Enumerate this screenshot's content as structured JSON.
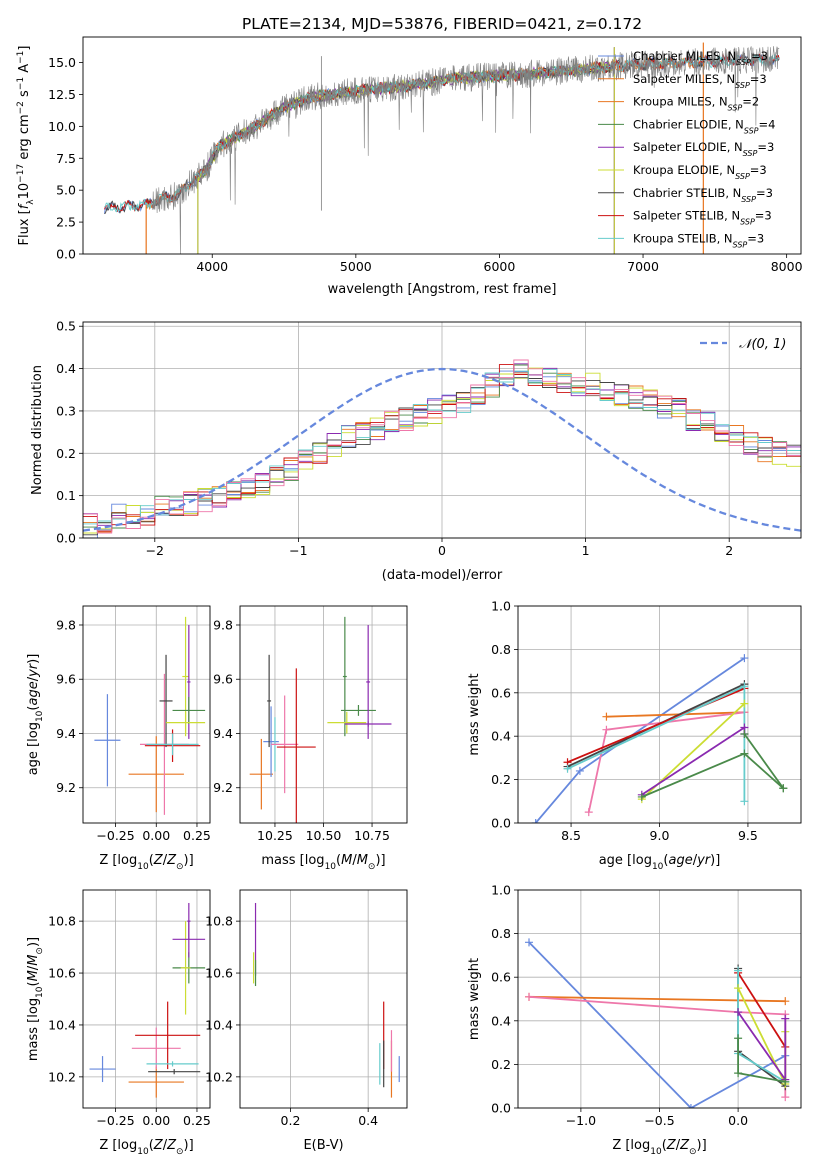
{
  "figure": {
    "title": "PLATE=2134, MJD=53876, FIBERID=0421, z=0.172"
  },
  "colors": {
    "blue": "#6688dd",
    "orange": "#e87722",
    "green": "#4a8a4a",
    "purple": "#8a2ab0",
    "yellowgreen": "#ccdd33",
    "darkgray": "#444444",
    "red": "#cc1111",
    "cyan": "#66cccc",
    "pink": "#ee77aa",
    "sky": "#3399dd",
    "data": "#808080"
  },
  "chart_data": [
    {
      "id": "spectrum",
      "type": "line",
      "title": "PLATE=2134, MJD=53876, FIBERID=0421, z=0.172",
      "xlabel": "wavelength [Angstrom, rest frame]",
      "ylabel": "Flux [f_λ 10^-17 erg cm^-2 s^-1 A^-1]",
      "xlim": [
        3100,
        8100
      ],
      "ylim": [
        0,
        17
      ],
      "xticks": [
        4000,
        5000,
        6000,
        7000,
        8000
      ],
      "yticks": [
        0.0,
        2.5,
        5.0,
        7.5,
        10.0,
        12.5,
        15.0
      ],
      "grid": false,
      "legend_position": "top-right",
      "envelope": {
        "x": [
          3250,
          3400,
          3550,
          3650,
          3750,
          3850,
          3950,
          4050,
          4150,
          4300,
          4500,
          4700,
          4900,
          5100,
          5300,
          5500,
          5700,
          5900,
          6100,
          6300,
          6500,
          6700,
          6900,
          7100,
          7300,
          7500,
          7700
        ],
        "y": [
          3.6,
          3.7,
          3.9,
          4.3,
          4.6,
          5.6,
          6.5,
          8.5,
          9.0,
          10.0,
          11.5,
          12.3,
          12.6,
          12.9,
          13.1,
          13.4,
          13.8,
          13.9,
          14.0,
          14.2,
          14.4,
          14.6,
          14.8,
          14.9,
          15.0,
          15.1,
          15.2
        ]
      },
      "series": [
        {
          "name": "Chabrier MILES, N_SSP=3",
          "color": "#6688dd",
          "xstart": 3250,
          "xend": 7950
        },
        {
          "name": "Salpeter MILES, N_SSP=3",
          "color": "#e87722",
          "xstart": 3540,
          "xend": 7420
        },
        {
          "name": "Kroupa MILES, N_SSP=2",
          "color": "#e87722",
          "xstart": 3540,
          "xend": 7420
        },
        {
          "name": "Chabrier ELODIE, N_SSP=4",
          "color": "#4a8a4a",
          "xstart": 3900,
          "xend": 6800
        },
        {
          "name": "Salpeter ELODIE, N_SSP=3",
          "color": "#8a2ab0",
          "xstart": 3900,
          "xend": 6800
        },
        {
          "name": "Kroupa ELODIE, N_SSP=3",
          "color": "#ccdd33",
          "xstart": 3900,
          "xend": 6800
        },
        {
          "name": "Chabrier STELIB, N_SSP=3",
          "color": "#444444",
          "xstart": 3250,
          "xend": 7950
        },
        {
          "name": "Salpeter STELIB, N_SSP=3",
          "color": "#cc1111",
          "xstart": 3250,
          "xend": 7950
        },
        {
          "name": "Kroupa STELIB, N_SSP=3",
          "color": "#66cccc",
          "xstart": 3250,
          "xend": 7950
        }
      ],
      "legend": [
        {
          "label": "Chabrier MILES, N",
          "sub": "SSP",
          "suffix": "=3",
          "color": "#6688dd"
        },
        {
          "label": "Salpeter MILES, N",
          "sub": "SSP",
          "suffix": "=3",
          "color": "#e87722"
        },
        {
          "label": "Kroupa MILES, N",
          "sub": "SSP",
          "suffix": "=2",
          "color": "#e87722"
        },
        {
          "label": "Chabrier ELODIE, N",
          "sub": "SSP",
          "suffix": "=4",
          "color": "#4a8a4a"
        },
        {
          "label": "Salpeter ELODIE, N",
          "sub": "SSP",
          "suffix": "=3",
          "color": "#8a2ab0"
        },
        {
          "label": "Kroupa ELODIE, N",
          "sub": "SSP",
          "suffix": "=3",
          "color": "#ccdd33"
        },
        {
          "label": "Chabrier STELIB, N",
          "sub": "SSP",
          "suffix": "=3",
          "color": "#444444"
        },
        {
          "label": "Salpeter STELIB, N",
          "sub": "SSP",
          "suffix": "=3",
          "color": "#cc1111"
        },
        {
          "label": "Kroupa STELIB, N",
          "sub": "SSP",
          "suffix": "=3",
          "color": "#66cccc"
        }
      ]
    },
    {
      "id": "residuals",
      "type": "line",
      "xlabel": "(data-model)/error",
      "ylabel": "Normed distribution",
      "xlim": [
        -2.5,
        2.5
      ],
      "ylim": [
        0,
        0.51
      ],
      "xticks": [
        -2,
        -1,
        0,
        1,
        2
      ],
      "yticks": [
        0.0,
        0.1,
        0.2,
        0.3,
        0.4,
        0.5
      ],
      "grid": true,
      "legend_position": "top-right",
      "reference": {
        "label": "N(0,1)",
        "color": "#6688dd"
      },
      "bin_width": 0.1,
      "hist_base": [
        0.03,
        0.04,
        0.05,
        0.05,
        0.06,
        0.07,
        0.07,
        0.08,
        0.09,
        0.1,
        0.11,
        0.12,
        0.13,
        0.15,
        0.16,
        0.18,
        0.2,
        0.22,
        0.24,
        0.25,
        0.26,
        0.27,
        0.28,
        0.29,
        0.3,
        0.31,
        0.32,
        0.34,
        0.36,
        0.38,
        0.4,
        0.39,
        0.38,
        0.37,
        0.36,
        0.36,
        0.35,
        0.34,
        0.33,
        0.32,
        0.31,
        0.3,
        0.28,
        0.27,
        0.25,
        0.24,
        0.22,
        0.21,
        0.2,
        0.19,
        0.18,
        0.17,
        0.16,
        0.15,
        0.14,
        0.12,
        0.11,
        0.1,
        0.09,
        0.08,
        0.07,
        0.07,
        0.06,
        0.05,
        0.04,
        0.04,
        0.03,
        0.03,
        0.03,
        0.02
      ],
      "hist_colors": [
        "#6688dd",
        "#e87722",
        "#4a8a4a",
        "#8a2ab0",
        "#ccdd33",
        "#444444",
        "#cc1111",
        "#66cccc",
        "#ee77aa"
      ]
    },
    {
      "id": "age_vs_Z",
      "type": "scatter",
      "xlabel": "Z [log10(Z/Z_sun)]",
      "ylabel": "age [log10(age/yr)]",
      "xlim": [
        -0.45,
        0.33
      ],
      "ylim": [
        9.07,
        9.87
      ],
      "xticks": [
        -0.25,
        0.0,
        0.25
      ],
      "yticks": [
        9.2,
        9.4,
        9.6,
        9.8
      ],
      "grid": true,
      "points": [
        {
          "x": -0.3,
          "y": 9.375,
          "xerr": 0.08,
          "yerr": 0.17,
          "color": "#6688dd"
        },
        {
          "x": 0.0,
          "y": 9.25,
          "xerr": 0.17,
          "yerr": 0.14,
          "color": "#e87722"
        },
        {
          "x": 0.05,
          "y": 9.36,
          "xerr": 0.15,
          "yerr": 0.26,
          "color": "#ee77aa"
        },
        {
          "x": 0.1,
          "y": 9.355,
          "xerr": 0.17,
          "yerr": 0.06,
          "color": "#cc1111"
        },
        {
          "x": 0.06,
          "y": 9.52,
          "xerr": 0.04,
          "yerr": 0.17,
          "color": "#444444"
        },
        {
          "x": 0.1,
          "y": 9.36,
          "xerr": 0.16,
          "yerr": 0.04,
          "color": "#66cccc"
        },
        {
          "x": 0.18,
          "y": 9.61,
          "xerr": 0.02,
          "yerr": 0.22,
          "color": "#ccdd33"
        },
        {
          "x": 0.2,
          "y": 9.59,
          "xerr": 0.01,
          "yerr": 0.21,
          "color": "#8a2ab0"
        },
        {
          "x": 0.2,
          "y": 9.485,
          "xerr": 0.1,
          "yerr": 0.05,
          "color": "#4a8a4a"
        },
        {
          "x": 0.18,
          "y": 9.44,
          "xerr": 0.12,
          "yerr": 0.04,
          "color": "#ccdd33"
        }
      ]
    },
    {
      "id": "age_vs_mass",
      "type": "scatter",
      "xlabel": "mass [log10(M/M_sun)]",
      "ylabel": "",
      "xlim": [
        10.07,
        10.93
      ],
      "ylim": [
        9.07,
        9.87
      ],
      "xticks": [
        10.25,
        10.5,
        10.75
      ],
      "yticks": [
        9.2,
        9.4,
        9.6,
        9.8
      ],
      "grid": true,
      "points": [
        {
          "x": 10.18,
          "y": 9.25,
          "xerr": 0.06,
          "yerr": 0.13,
          "color": "#e87722"
        },
        {
          "x": 10.23,
          "y": 9.37,
          "xerr": 0.04,
          "yerr": 0.13,
          "color": "#6688dd"
        },
        {
          "x": 10.25,
          "y": 9.36,
          "xerr": 0.02,
          "yerr": 0.1,
          "color": "#66cccc"
        },
        {
          "x": 10.22,
          "y": 9.52,
          "xerr": 0.01,
          "yerr": 0.17,
          "color": "#444444"
        },
        {
          "x": 10.3,
          "y": 9.36,
          "xerr": 0.07,
          "yerr": 0.18,
          "color": "#ee77aa"
        },
        {
          "x": 10.36,
          "y": 9.35,
          "xerr": 0.1,
          "yerr": 0.29,
          "color": "#cc1111"
        },
        {
          "x": 10.61,
          "y": 9.61,
          "xerr": 0.01,
          "yerr": 0.22,
          "color": "#4a8a4a"
        },
        {
          "x": 10.62,
          "y": 9.44,
          "xerr": 0.1,
          "yerr": 0.04,
          "color": "#ccdd33"
        },
        {
          "x": 10.68,
          "y": 9.485,
          "xerr": 0.09,
          "yerr": 0.02,
          "color": "#4a8a4a"
        },
        {
          "x": 10.73,
          "y": 9.59,
          "xerr": 0.01,
          "yerr": 0.21,
          "color": "#8a2ab0"
        },
        {
          "x": 10.73,
          "y": 9.435,
          "xerr": 0.12,
          "yerr": 0.01,
          "color": "#8a2ab0"
        }
      ]
    },
    {
      "id": "weight_vs_age",
      "type": "line",
      "xlabel": "age [log10(age/yr)]",
      "ylabel": "mass weight",
      "xlim": [
        8.2,
        9.8
      ],
      "ylim": [
        0,
        1
      ],
      "xticks": [
        8.5,
        9.0,
        9.5
      ],
      "yticks": [
        0.0,
        0.2,
        0.4,
        0.6,
        0.8,
        1.0
      ],
      "grid": true,
      "series": [
        {
          "color": "#6688dd",
          "x": [
            8.3,
            8.55,
            9.48
          ],
          "y": [
            0.0,
            0.24,
            0.76
          ]
        },
        {
          "color": "#e87722",
          "x": [
            8.7,
            9.48
          ],
          "y": [
            0.49,
            0.51
          ]
        },
        {
          "color": "#ee77aa",
          "x": [
            8.6,
            8.7,
            9.48
          ],
          "y": [
            0.05,
            0.43,
            0.51
          ]
        },
        {
          "color": "#444444",
          "x": [
            8.48,
            9.48
          ],
          "y": [
            0.26,
            0.64
          ]
        },
        {
          "color": "#cc1111",
          "x": [
            8.48,
            9.48
          ],
          "y": [
            0.28,
            0.62
          ]
        },
        {
          "color": "#66cccc",
          "x": [
            8.48,
            9.48,
            9.48
          ],
          "y": [
            0.25,
            0.63,
            0.1
          ]
        },
        {
          "color": "#ccdd33",
          "x": [
            8.9,
            9.48
          ],
          "y": [
            0.11,
            0.55
          ]
        },
        {
          "color": "#8a2ab0",
          "x": [
            8.9,
            9.48,
            9.48
          ],
          "y": [
            0.13,
            0.44,
            0.41
          ]
        },
        {
          "color": "#4a8a4a",
          "x": [
            8.9,
            9.48,
            9.7
          ],
          "y": [
            0.12,
            0.32,
            0.16
          ]
        },
        {
          "color": "#4a8a4a",
          "x": [
            9.48,
            9.7
          ],
          "y": [
            0.41,
            0.16
          ]
        }
      ]
    },
    {
      "id": "mass_vs_Z",
      "type": "scatter",
      "xlabel": "Z [log10(Z/Z_sun)]",
      "ylabel": "mass [log10(M/M_sun)]",
      "xlim": [
        -0.45,
        0.33
      ],
      "ylim": [
        10.08,
        10.92
      ],
      "xticks": [
        -0.25,
        0.0,
        0.25
      ],
      "yticks": [
        10.2,
        10.4,
        10.6,
        10.8
      ],
      "grid": true,
      "points": [
        {
          "x": -0.33,
          "y": 10.23,
          "xerr": 0.08,
          "yerr": 0.05,
          "color": "#6688dd"
        },
        {
          "x": 0.0,
          "y": 10.18,
          "xerr": 0.17,
          "yerr": 0.06,
          "color": "#e87722"
        },
        {
          "x": 0.0,
          "y": 10.31,
          "xerr": 0.15,
          "yerr": 0.08,
          "color": "#ee77aa"
        },
        {
          "x": 0.07,
          "y": 10.36,
          "xerr": 0.2,
          "yerr": 0.13,
          "color": "#cc1111"
        },
        {
          "x": 0.11,
          "y": 10.22,
          "xerr": 0.16,
          "yerr": 0.01,
          "color": "#444444"
        },
        {
          "x": 0.1,
          "y": 10.25,
          "xerr": 0.16,
          "yerr": 0.01,
          "color": "#66cccc"
        },
        {
          "x": 0.2,
          "y": 10.62,
          "xerr": 0.1,
          "yerr": 0.06,
          "color": "#4a8a4a"
        },
        {
          "x": 0.18,
          "y": 10.62,
          "xerr": 0.03,
          "yerr": 0.18,
          "color": "#ccdd33"
        },
        {
          "x": 0.2,
          "y": 10.73,
          "xerr": 0.1,
          "yerr": 0.07,
          "color": "#8a2ab0"
        },
        {
          "x": 0.2,
          "y": 10.8,
          "xerr": 0.01,
          "yerr": 0.07,
          "color": "#8a2ab0"
        }
      ]
    },
    {
      "id": "mass_vs_EBV",
      "type": "scatter",
      "xlabel": "E(B-V)",
      "ylabel": "",
      "xlim": [
        0.07,
        0.5
      ],
      "ylim": [
        10.08,
        10.92
      ],
      "xticks": [
        0.2,
        0.4
      ],
      "yticks": [
        10.2,
        10.4,
        10.6,
        10.8
      ],
      "grid": true,
      "points": [
        {
          "x": 0.11,
          "y": 10.73,
          "xerr": 0.0,
          "yerr": 0.14,
          "color": "#8a2ab0"
        },
        {
          "x": 0.105,
          "y": 10.62,
          "xerr": 0.0,
          "yerr": 0.06,
          "color": "#ccdd33"
        },
        {
          "x": 0.11,
          "y": 10.6,
          "xerr": 0.0,
          "yerr": 0.05,
          "color": "#4a8a4a"
        },
        {
          "x": 0.43,
          "y": 10.25,
          "xerr": 0.0,
          "yerr": 0.08,
          "color": "#66cccc"
        },
        {
          "x": 0.44,
          "y": 10.36,
          "xerr": 0.0,
          "yerr": 0.13,
          "color": "#cc1111"
        },
        {
          "x": 0.44,
          "y": 10.25,
          "xerr": 0.0,
          "yerr": 0.09,
          "color": "#444444"
        },
        {
          "x": 0.46,
          "y": 10.23,
          "xerr": 0.0,
          "yerr": 0.11,
          "color": "#e87722"
        },
        {
          "x": 0.46,
          "y": 10.3,
          "xerr": 0.0,
          "yerr": 0.08,
          "color": "#ee77aa"
        },
        {
          "x": 0.48,
          "y": 10.23,
          "xerr": 0.0,
          "yerr": 0.05,
          "color": "#6688dd"
        }
      ]
    },
    {
      "id": "weight_vs_Z",
      "type": "line",
      "xlabel": "Z [log10(Z/Z_sun)]",
      "ylabel": "mass weight",
      "xlim": [
        -1.4,
        0.4
      ],
      "ylim": [
        0,
        1
      ],
      "xticks": [
        -1.0,
        -0.5,
        0.0
      ],
      "yticks": [
        0.0,
        0.2,
        0.4,
        0.6,
        0.8,
        1.0
      ],
      "grid": true,
      "series": [
        {
          "color": "#6688dd",
          "x": [
            -1.33,
            -0.3,
            0.3
          ],
          "y": [
            0.76,
            0.0,
            0.24
          ]
        },
        {
          "color": "#e87722",
          "x": [
            -1.33,
            0.3
          ],
          "y": [
            0.51,
            0.49
          ]
        },
        {
          "color": "#ee77aa",
          "x": [
            -1.33,
            0.0,
            0.3,
            0.3
          ],
          "y": [
            0.51,
            0.44,
            0.43,
            0.05
          ]
        },
        {
          "color": "#444444",
          "x": [
            0.0,
            0.0,
            0.3
          ],
          "y": [
            0.64,
            0.26,
            0.1
          ]
        },
        {
          "color": "#cc1111",
          "x": [
            0.0,
            0.3
          ],
          "y": [
            0.62,
            0.28
          ]
        },
        {
          "color": "#66cccc",
          "x": [
            0.0,
            0.0,
            0.3
          ],
          "y": [
            0.63,
            0.25,
            0.12
          ]
        },
        {
          "color": "#ccdd33",
          "x": [
            0.0,
            0.3,
            0.3
          ],
          "y": [
            0.55,
            0.11,
            0.35
          ]
        },
        {
          "color": "#8a2ab0",
          "x": [
            0.0,
            0.3,
            0.3
          ],
          "y": [
            0.44,
            0.13,
            0.41
          ]
        },
        {
          "color": "#4a8a4a",
          "x": [
            0.0,
            0.0,
            0.3
          ],
          "y": [
            0.32,
            0.16,
            0.12
          ]
        }
      ]
    }
  ]
}
